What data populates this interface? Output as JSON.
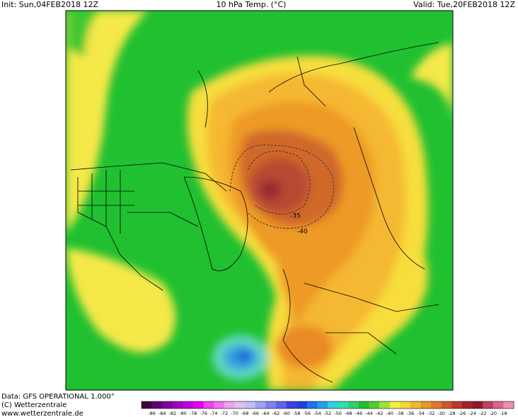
{
  "header": {
    "init": "Init: Sun,04FEB2018 12Z",
    "title": "10 hPa Temp. (°C)",
    "valid": "Valid: Tue,20FEB2018 12Z"
  },
  "map": {
    "contour_labels": [
      -35,
      -40
    ]
  },
  "footer": {
    "data": "Data: GFS OPERATIONAL 1.000°",
    "copyright": "(C) Wetterzentrale",
    "url": "www.wetterzentrale.de"
  },
  "colorbar": {
    "labels": [
      -86,
      -84,
      -82,
      -80,
      -78,
      -76,
      -74,
      -72,
      -70,
      -68,
      -66,
      -64,
      -62,
      -60,
      -58,
      -56,
      -54,
      -52,
      -50,
      -48,
      -46,
      -44,
      -42,
      -40,
      -38,
      -36,
      -34,
      -32,
      -30,
      -28,
      -26,
      -24,
      -22,
      -20,
      -18
    ]
  }
}
